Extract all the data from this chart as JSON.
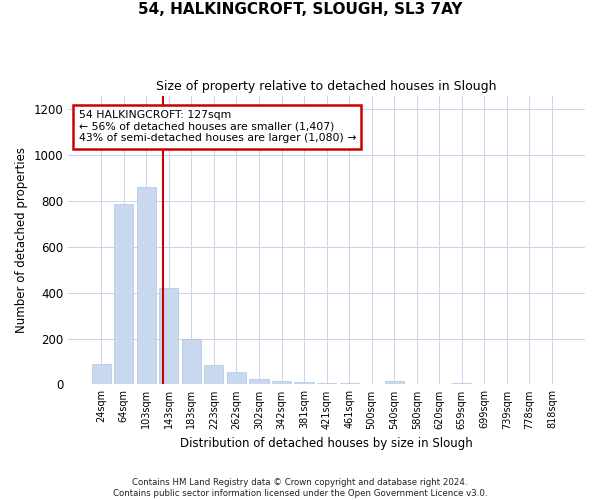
{
  "title1": "54, HALKINGCROFT, SLOUGH, SL3 7AY",
  "title2": "Size of property relative to detached houses in Slough",
  "xlabel": "Distribution of detached houses by size in Slough",
  "ylabel": "Number of detached properties",
  "categories": [
    "24sqm",
    "64sqm",
    "103sqm",
    "143sqm",
    "183sqm",
    "223sqm",
    "262sqm",
    "302sqm",
    "342sqm",
    "381sqm",
    "421sqm",
    "461sqm",
    "500sqm",
    "540sqm",
    "580sqm",
    "620sqm",
    "659sqm",
    "699sqm",
    "739sqm",
    "778sqm",
    "818sqm"
  ],
  "values": [
    90,
    785,
    860,
    420,
    200,
    85,
    55,
    25,
    15,
    10,
    5,
    5,
    0,
    15,
    0,
    0,
    5,
    0,
    0,
    0,
    0
  ],
  "bar_color": "#c8d8ef",
  "bar_edge_color": "#b0c4de",
  "grid_color": "#c8d4e8",
  "background_color": "#ffffff",
  "fig_background": "#ffffff",
  "redline_x": 2.75,
  "annotation_text_line1": "54 HALKINGCROFT: 127sqm",
  "annotation_text_line2": "← 56% of detached houses are smaller (1,407)",
  "annotation_text_line3": "43% of semi-detached houses are larger (1,080) →",
  "annotation_box_facecolor": "#ffffff",
  "annotation_box_edgecolor": "#cc0000",
  "redline_color": "#cc0000",
  "ylim_max": 1260,
  "yticks": [
    0,
    200,
    400,
    600,
    800,
    1000,
    1200
  ],
  "footer_line1": "Contains HM Land Registry data © Crown copyright and database right 2024.",
  "footer_line2": "Contains public sector information licensed under the Open Government Licence v3.0."
}
